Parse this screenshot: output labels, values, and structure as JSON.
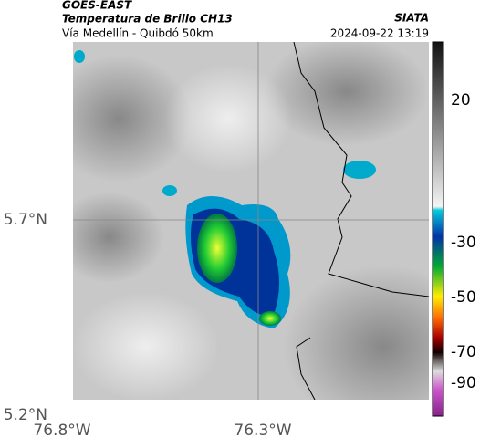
{
  "header": {
    "source": "GOES-EAST",
    "title": "Temperatura de Brillo CH13",
    "subtitle": "Vía Medellín - Quibdó 50km",
    "brand": "SIATA",
    "timestamp": "2024-09-22 13:19"
  },
  "map": {
    "lat_labels": [
      "5.7°N",
      "5.2°N"
    ],
    "lon_labels": [
      "76.8°W",
      "76.3°W"
    ],
    "colorbar_labels": [
      "20",
      "-30",
      "-50",
      "-70",
      "-90"
    ]
  }
}
